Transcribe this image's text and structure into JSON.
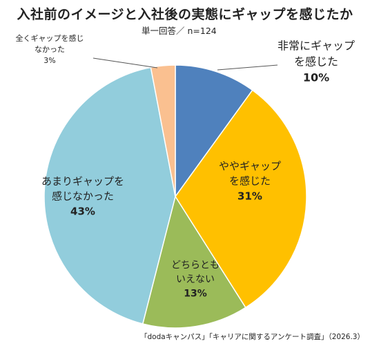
{
  "title": "入社前のイメージと入社後の実態にギャップを感じたか",
  "subtitle": "単一回答／ n=124",
  "source": "「dodaキャンパス」「キャリアに関するアンケート調査」（2026.3）",
  "chart_data": {
    "type": "pie",
    "start_angle_deg": 0,
    "direction": "clockwise",
    "slices": [
      {
        "label_lines": [
          "非常にギャップ",
          "を感じた"
        ],
        "value": 10,
        "value_text": "10%",
        "color": "#4F81BD"
      },
      {
        "label_lines": [
          "ややギャップ",
          "を感じた"
        ],
        "value": 31,
        "value_text": "31%",
        "color": "#FFC000"
      },
      {
        "label_lines": [
          "どちらとも",
          "いえない"
        ],
        "value": 13,
        "value_text": "13%",
        "color": "#9BBB59"
      },
      {
        "label_lines": [
          "あまりギャップを",
          "感じなかった"
        ],
        "value": 43,
        "value_text": "43%",
        "color": "#92CDDC"
      },
      {
        "label_lines": [
          "全くギャップを感じ",
          "なかった"
        ],
        "value": 3,
        "value_text": "3%",
        "color": "#FAC090"
      }
    ]
  }
}
